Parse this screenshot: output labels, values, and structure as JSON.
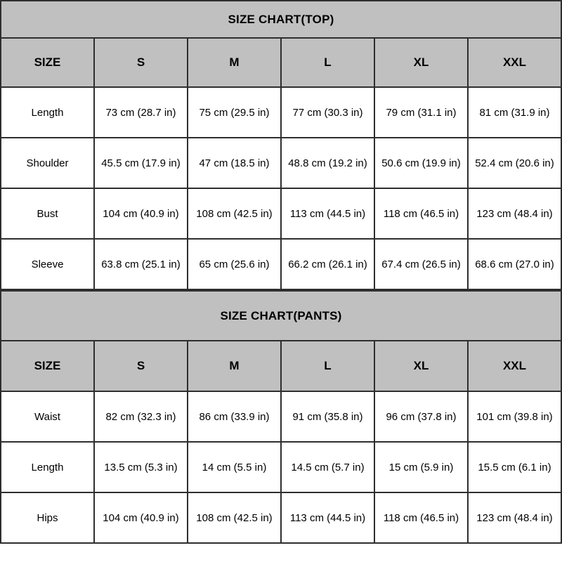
{
  "colors": {
    "header_bg": "#c0c0c0",
    "border": "#2e2e2e",
    "text": "#000000",
    "row_bg": "#ffffff"
  },
  "chart_data": [
    {
      "type": "table",
      "title": "SIZE CHART(TOP)",
      "columns": [
        "SIZE",
        "S",
        "M",
        "L",
        "XL",
        "XXL"
      ],
      "rows": [
        {
          "label": "Length",
          "values": [
            "73 cm (28.7 in)",
            "75 cm (29.5 in)",
            "77 cm (30.3 in)",
            "79 cm (31.1 in)",
            "81 cm (31.9 in)"
          ]
        },
        {
          "label": "Shoulder",
          "values": [
            "45.5 cm (17.9 in)",
            "47 cm (18.5 in)",
            "48.8 cm (19.2 in)",
            "50.6 cm (19.9 in)",
            "52.4 cm (20.6 in)"
          ]
        },
        {
          "label": "Bust",
          "values": [
            "104 cm (40.9 in)",
            "108 cm (42.5 in)",
            "113 cm (44.5 in)",
            "118 cm (46.5 in)",
            "123 cm (48.4 in)"
          ]
        },
        {
          "label": "Sleeve",
          "values": [
            "63.8 cm (25.1 in)",
            "65 cm (25.6 in)",
            "66.2 cm (26.1 in)",
            "67.4 cm (26.5 in)",
            "68.6 cm (27.0 in)"
          ]
        }
      ]
    },
    {
      "type": "table",
      "title": "SIZE CHART(PANTS)",
      "columns": [
        "SIZE",
        "S",
        "M",
        "L",
        "XL",
        "XXL"
      ],
      "rows": [
        {
          "label": "Waist",
          "values": [
            "82 cm (32.3 in)",
            "86 cm (33.9 in)",
            "91 cm (35.8 in)",
            "96 cm (37.8 in)",
            "101 cm (39.8 in)"
          ]
        },
        {
          "label": "Length",
          "values": [
            "13.5 cm (5.3 in)",
            "14 cm (5.5 in)",
            "14.5 cm (5.7 in)",
            "15 cm (5.9 in)",
            "15.5 cm (6.1 in)"
          ]
        },
        {
          "label": "Hips",
          "values": [
            "104 cm (40.9 in)",
            "108 cm (42.5 in)",
            "113 cm (44.5 in)",
            "118 cm (46.5 in)",
            "123 cm (48.4 in)"
          ]
        }
      ]
    }
  ]
}
